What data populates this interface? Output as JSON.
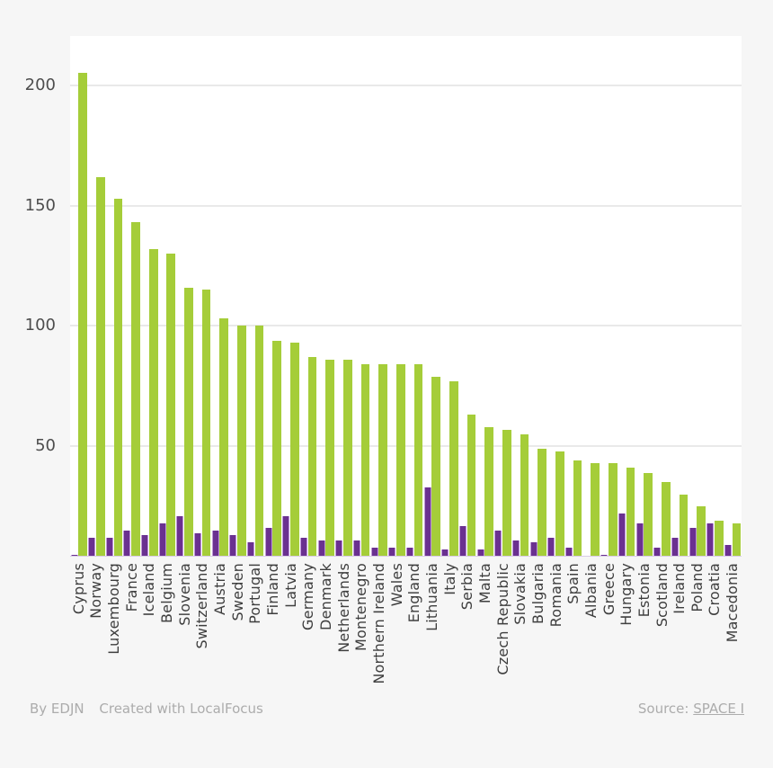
{
  "page": {
    "background": "#f6f6f6"
  },
  "footer": {
    "byline": "By EDJN",
    "created_with": "Created with LocalFocus",
    "source_label": "Source:",
    "source_link": "SPACE I"
  },
  "chart_data": {
    "type": "bar",
    "title": "",
    "xlabel": "",
    "ylabel": "",
    "grid": true,
    "legend_position": "none",
    "yticks": [
      50,
      100,
      150,
      200
    ],
    "ymin": 4.5,
    "ymax": 220.5,
    "categories": [
      "Cyprus",
      "Norway",
      "Luxembourg",
      "France",
      "Iceland",
      "Belgium",
      "Slovenia",
      "Switzerland",
      "Austria",
      "Sweden",
      "Portugal",
      "Finland",
      "Latvia",
      "Germany",
      "Denmark",
      "Netherlands",
      "Montenegro",
      "Northern Ireland",
      "Wales",
      "England",
      "Lithuania",
      "Italy",
      "Serbia",
      "Malta",
      "Czech Republic",
      "Slovakia",
      "Bulgaria",
      "Romania",
      "Spain",
      "Albania",
      "Greece",
      "Hungary",
      "Estonia",
      "Scotland",
      "Ireland",
      "Poland",
      "Croatia",
      "Macedonia"
    ],
    "series": [
      {
        "name": "purple-series",
        "color": "#6a3190",
        "values": [
          5,
          12,
          12,
          15,
          13,
          18,
          21,
          14,
          15,
          13,
          10,
          16,
          21,
          12,
          11,
          11,
          11,
          8,
          8,
          8,
          33,
          7,
          17,
          7,
          15,
          11,
          10,
          12,
          8,
          4,
          5,
          22,
          18,
          8,
          12,
          16,
          18,
          9
        ]
      },
      {
        "name": "green-series",
        "color": "#a5cd39",
        "values": [
          205,
          162,
          153,
          143,
          132,
          130,
          116,
          115,
          103,
          100,
          100,
          94,
          93,
          87,
          86,
          86,
          84,
          84,
          84,
          84,
          79,
          77,
          63,
          58,
          57,
          55,
          49,
          48,
          44,
          43,
          43,
          41,
          39,
          35,
          30,
          25,
          19,
          18
        ]
      }
    ]
  }
}
